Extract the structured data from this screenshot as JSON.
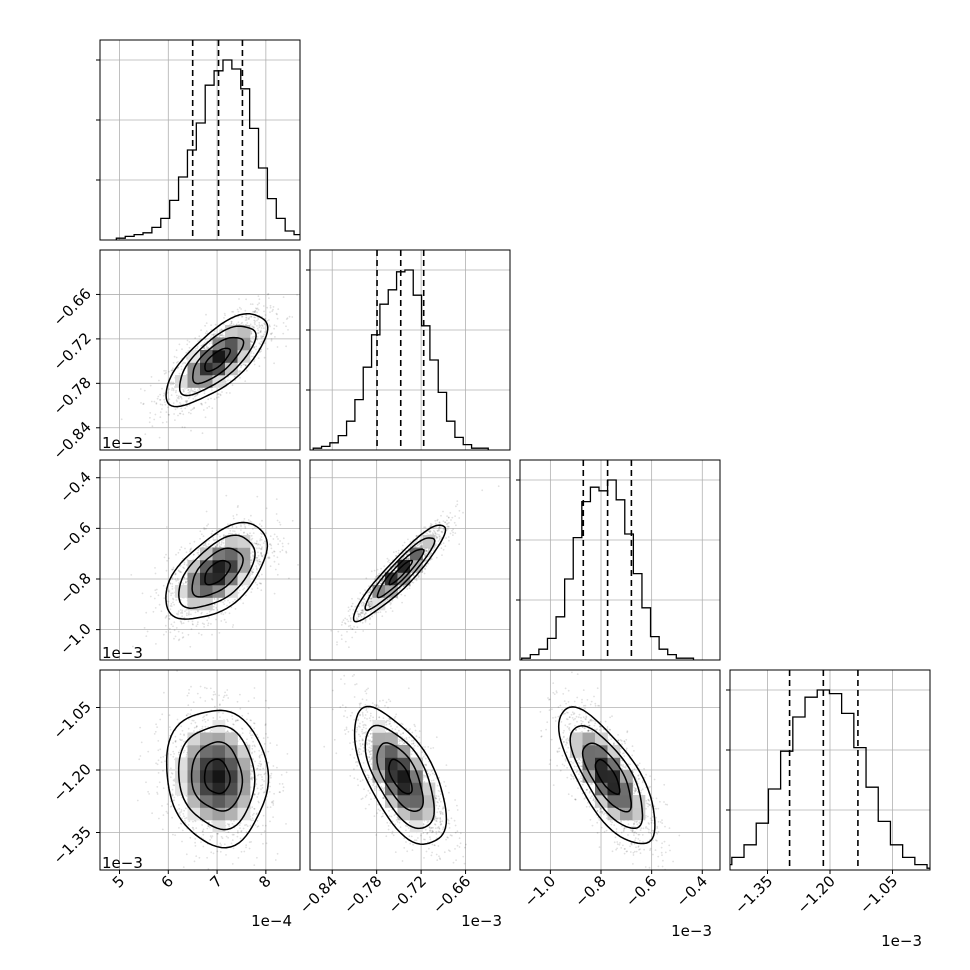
{
  "chart_data": {
    "type": "corner",
    "params": [
      {
        "id": "p0",
        "range": [
          0.00046,
          0.00087
        ],
        "ticks": [
          0.0005,
          0.0006,
          0.0007,
          0.0008
        ],
        "tick_labels": [
          "5",
          "6",
          "7",
          "8"
        ],
        "offset": "1e−4"
      },
      {
        "id": "p1",
        "range": [
          -0.00087,
          -0.0006
        ],
        "ticks": [
          -0.00084,
          -0.00078,
          -0.00072,
          -0.00066
        ],
        "tick_labels": [
          "−0.84",
          "−0.78",
          "−0.72",
          "−0.66"
        ],
        "offset": "1e−3"
      },
      {
        "id": "p2",
        "range": [
          -0.00112,
          -0.00033
        ],
        "ticks": [
          -0.001,
          -0.0008,
          -0.0006,
          -0.0004
        ],
        "tick_labels": [
          "−1.0",
          "−0.8",
          "−0.6",
          "−0.4"
        ],
        "offset": "1e−3"
      },
      {
        "id": "p3",
        "range": [
          -0.00144,
          -0.00096
        ],
        "ticks": [
          -0.00135,
          -0.0012,
          -0.00105
        ],
        "tick_labels": [
          "−1.35",
          "−1.20",
          "−1.05"
        ],
        "offset": "1e−3"
      }
    ],
    "marginals": [
      {
        "param": 0,
        "quantiles": [
          0.00065,
          0.000703,
          0.000752
        ],
        "bin_counts": [
          1,
          2,
          3,
          4,
          7,
          12,
          22,
          35,
          50,
          65,
          86,
          94,
          100,
          95,
          84,
          62,
          40,
          23,
          12,
          5,
          3,
          1,
          1
        ]
      },
      {
        "param": 1,
        "quantiles": [
          -0.0007795,
          -0.0007475,
          -0.0007165
        ],
        "bin_counts": [
          1,
          2,
          4,
          8,
          16,
          28,
          46,
          64,
          81,
          89,
          99,
          100,
          86,
          69,
          50,
          32,
          16,
          7,
          3,
          1,
          1
        ]
      },
      {
        "param": 2,
        "quantiles": [
          -0.00087,
          -0.000774,
          -0.00068
        ],
        "bin_counts": [
          1,
          3,
          6,
          12,
          24,
          45,
          68,
          88,
          96,
          94,
          100,
          89,
          70,
          48,
          29,
          13,
          6,
          3,
          1,
          1
        ]
      },
      {
        "param": 3,
        "quantiles": [
          -0.001297,
          -0.001216,
          -0.001133
        ],
        "bin_counts": [
          1,
          3,
          7,
          14,
          26,
          45,
          66,
          85,
          96,
          100,
          98,
          87,
          68,
          46,
          27,
          14,
          7,
          3,
          1
        ]
      }
    ],
    "pairs": [
      {
        "x": 0,
        "y": 1,
        "mean": [
          0.0007,
          -0.000748
        ],
        "sd": [
          5.2e-05,
          3.1e-05
        ],
        "corr": 0.72
      },
      {
        "x": 0,
        "y": 2,
        "mean": [
          0.0007,
          -0.000774
        ],
        "sd": [
          5.2e-05,
          9.5e-05
        ],
        "corr": 0.55
      },
      {
        "x": 1,
        "y": 2,
        "mean": [
          -0.000748,
          -0.000774
        ],
        "sd": [
          3.1e-05,
          9.5e-05
        ],
        "corr": 0.92
      },
      {
        "x": 0,
        "y": 3,
        "mean": [
          0.0007,
          -0.001216
        ],
        "sd": [
          5.2e-05,
          8.2e-05
        ],
        "corr": -0.08
      },
      {
        "x": 1,
        "y": 3,
        "mean": [
          -0.000748,
          -0.001216
        ],
        "sd": [
          3.1e-05,
          8.2e-05
        ],
        "corr": -0.62
      },
      {
        "x": 2,
        "y": 3,
        "mean": [
          -0.000774,
          -0.001216
        ],
        "sd": [
          9.5e-05,
          8.2e-05
        ],
        "corr": -0.72
      }
    ],
    "contour_levels_sigma": [
      0.5,
      1.0,
      1.5,
      2.0
    ],
    "grid": true,
    "title": "",
    "colors": {
      "line": "#000000",
      "grid": "#b0b0b0",
      "points": "#000000"
    }
  }
}
